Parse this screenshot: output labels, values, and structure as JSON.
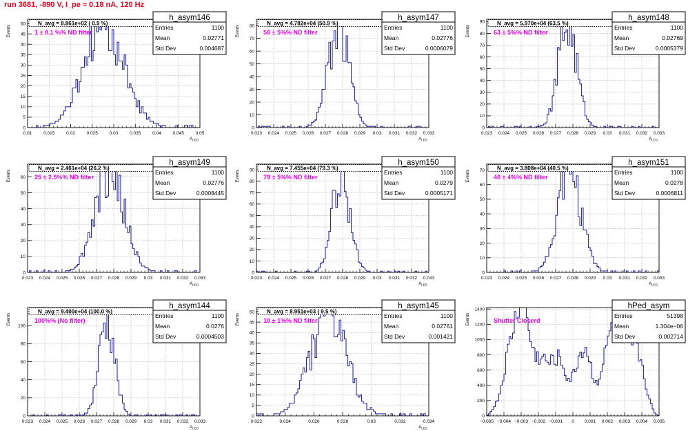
{
  "header": {
    "run_title": "run 3681,  -890 V, I_pe ≈ 0.18 nA, 120 Hz"
  },
  "colors": {
    "histogram": "#2b2b9a",
    "annotation": "#e600e6",
    "header": "#e8001c",
    "grid": "#b0b0b0"
  },
  "chart_data": [
    {
      "type": "bar",
      "name": "h_asym146",
      "stats": {
        "Entries": "1100",
        "Mean": "0.02771",
        "Std Dev": "0.004687"
      },
      "navg_label": "N_avg = 8.861e+02 ( 0.9 %)",
      "filter_label": "1 ± 0.1 %% ND filter",
      "xlabel": "A_LED",
      "ylabel": "Events",
      "xlim": [
        0.01,
        0.05
      ],
      "ylim": [
        0,
        52
      ],
      "xticks": [
        "0.01",
        "0.015",
        "0.02",
        "0.025",
        "0.03",
        "0.035",
        "0.04",
        "0.045",
        "0.05"
      ],
      "yticks": [
        "0",
        "5",
        "10",
        "15",
        "20",
        "25",
        "30",
        "35",
        "40",
        "45",
        "50"
      ],
      "mean": 0.02771,
      "sigma": 0.004687,
      "peak": 48,
      "nbins": 100,
      "seed": 146
    },
    {
      "type": "bar",
      "name": "h_asym147",
      "stats": {
        "Entries": "1100",
        "Mean": "0.02776",
        "Std Dev": "0.0006079"
      },
      "navg_label": "N_avg = 4.782e+04 (50.9 %)",
      "filter_label": "50 ± 5%% ND filter",
      "xlabel": "A_LED",
      "ylabel": "Events",
      "xlim": [
        0.023,
        0.033
      ],
      "ylim": [
        0,
        85
      ],
      "xticks": [
        "0.023",
        "0.024",
        "0.025",
        "0.026",
        "0.027",
        "0.028",
        "0.029",
        "0.03",
        "0.031",
        "0.032",
        "0.033"
      ],
      "yticks": [
        "0",
        "10",
        "20",
        "30",
        "40",
        "50",
        "60",
        "70",
        "80"
      ],
      "mean": 0.02776,
      "sigma": 0.0006079,
      "peak": 78,
      "nbins": 100,
      "seed": 147
    },
    {
      "type": "bar",
      "name": "h_asym148",
      "stats": {
        "Entries": "1100",
        "Mean": "0.02769",
        "Std Dev": "0.0005379"
      },
      "navg_label": "N_avg = 5.970e+04 (63.5 %)",
      "filter_label": "63 ± 5%% ND filter",
      "xlabel": "A_LED",
      "ylabel": "Events",
      "xlim": [
        0.023,
        0.033
      ],
      "ylim": [
        0,
        92
      ],
      "xticks": [
        "0.023",
        "0.024",
        "0.025",
        "0.026",
        "0.027",
        "0.028",
        "0.029",
        "0.03",
        "0.031",
        "0.032",
        "0.033"
      ],
      "yticks": [
        "0",
        "10",
        "20",
        "30",
        "40",
        "50",
        "60",
        "70",
        "80",
        "90"
      ],
      "mean": 0.02769,
      "sigma": 0.0005379,
      "peak": 88,
      "nbins": 100,
      "seed": 148
    },
    {
      "type": "bar",
      "name": "h_asym149",
      "stats": {
        "Entries": "1100",
        "Mean": "0.02776",
        "Std Dev": "0.0008445"
      },
      "navg_label": "N_avg = 2.461e+04 (26.2 %)",
      "filter_label": "25 ± 2.5%% ND filter",
      "xlabel": "A_LED",
      "ylabel": "Events",
      "xlim": [
        0.023,
        0.033
      ],
      "ylim": [
        0,
        68
      ],
      "xticks": [
        "0.023",
        "0.024",
        "0.025",
        "0.026",
        "0.027",
        "0.028",
        "0.029",
        "0.03",
        "0.031",
        "0.032",
        "0.033"
      ],
      "yticks": [
        "0",
        "10",
        "20",
        "30",
        "40",
        "50",
        "60"
      ],
      "mean": 0.02776,
      "sigma": 0.0008445,
      "peak": 63,
      "nbins": 100,
      "seed": 149
    },
    {
      "type": "bar",
      "name": "h_asym150",
      "stats": {
        "Entries": "1100",
        "Mean": "0.0279",
        "Std Dev": "0.0005171"
      },
      "navg_label": "N_avg = 7.455e+04 (79.3 %)",
      "filter_label": "79 ± 5%% ND filter",
      "xlabel": "A_LED",
      "ylabel": "Events",
      "xlim": [
        0.023,
        0.033
      ],
      "ylim": [
        0,
        95
      ],
      "xticks": [
        "0.023",
        "0.024",
        "0.025",
        "0.026",
        "0.027",
        "0.028",
        "0.029",
        "0.03",
        "0.031",
        "0.032",
        "0.033"
      ],
      "yticks": [
        "0",
        "10",
        "20",
        "30",
        "40",
        "50",
        "60",
        "70",
        "80",
        "90"
      ],
      "mean": 0.0279,
      "sigma": 0.0005171,
      "peak": 88,
      "nbins": 100,
      "seed": 150
    },
    {
      "type": "bar",
      "name": "h_asym151",
      "stats": {
        "Entries": "1100",
        "Mean": "0.0278",
        "Std Dev": "0.0006811"
      },
      "navg_label": "N_avg = 3.808e+04 (40.5 %)",
      "filter_label": "40 ± 4%% ND filter",
      "xlabel": "A_LED",
      "ylabel": "Events",
      "xlim": [
        0.023,
        0.033
      ],
      "ylim": [
        0,
        74
      ],
      "xticks": [
        "0.023",
        "0.024",
        "0.025",
        "0.026",
        "0.027",
        "0.028",
        "0.029",
        "0.03",
        "0.031",
        "0.032",
        "0.033"
      ],
      "yticks": [
        "0",
        "10",
        "20",
        "30",
        "40",
        "50",
        "60",
        "70"
      ],
      "mean": 0.0278,
      "sigma": 0.0006811,
      "peak": 70,
      "nbins": 100,
      "seed": 151
    },
    {
      "type": "bar",
      "name": "h_asym144",
      "stats": {
        "Entries": "1100",
        "Mean": "0.0276",
        "Std Dev": "0.0004503"
      },
      "navg_label": "N_avg = 9.400e+04 (100.0 %)",
      "filter_label": "100%% (No filter)",
      "xlabel": "A_LED",
      "ylabel": "Events",
      "xlim": [
        0.023,
        0.033
      ],
      "ylim": [
        0,
        120
      ],
      "xticks": [
        "0.023",
        "0.024",
        "0.025",
        "0.026",
        "0.027",
        "0.028",
        "0.029",
        "0.03",
        "0.031",
        "0.032",
        "0.033"
      ],
      "yticks": [
        "0",
        "20",
        "40",
        "60",
        "80",
        "100"
      ],
      "mean": 0.0276,
      "sigma": 0.0004503,
      "peak": 112,
      "nbins": 100,
      "seed": 144
    },
    {
      "type": "bar",
      "name": "h_asym145",
      "stats": {
        "Entries": "1100",
        "Mean": "0.02761",
        "Std Dev": "0.001421"
      },
      "navg_label": "N_avg = 8.951e+03 ( 9.5 %)",
      "filter_label": "10 ± 1%% ND filter",
      "xlabel": "A_LED",
      "ylabel": "Events",
      "xlim": [
        0.022,
        0.0355
      ],
      "ylim": [
        0,
        52
      ],
      "xticks": [
        "0.022",
        "0.024",
        "0.026",
        "0.028",
        "0.03",
        "0.032",
        "0.034"
      ],
      "yticks": [
        "0",
        "5",
        "10",
        "15",
        "20",
        "25",
        "30",
        "35",
        "40",
        "45",
        "50"
      ],
      "mean": 0.02761,
      "sigma": 0.001421,
      "peak": 48,
      "nbins": 100,
      "seed": 145
    },
    {
      "type": "bar",
      "name": "hPed_asym",
      "stats": {
        "Entries": "51398",
        "Mean": "1.304e−06",
        "Std Dev": "0.002714"
      },
      "navg_label": "",
      "filter_label": "Shutter Closerd",
      "xlabel": "",
      "ylabel": "Events",
      "xlim": [
        -0.005,
        0.005
      ],
      "ylim": [
        0,
        1420
      ],
      "xticks": [
        "−0.005",
        "−0.004",
        "−0.003",
        "−0.002",
        "−0.001",
        "0",
        "0.001",
        "0.002",
        "0.003",
        "0.004",
        "0.005"
      ],
      "yticks": [
        "0",
        "200",
        "400",
        "600",
        "800",
        "1000",
        "1200",
        "1400"
      ],
      "mean": 0,
      "sigma": 0.002714,
      "peak": 1340,
      "nbins": 100,
      "seed": 999,
      "pedestal": true
    }
  ]
}
